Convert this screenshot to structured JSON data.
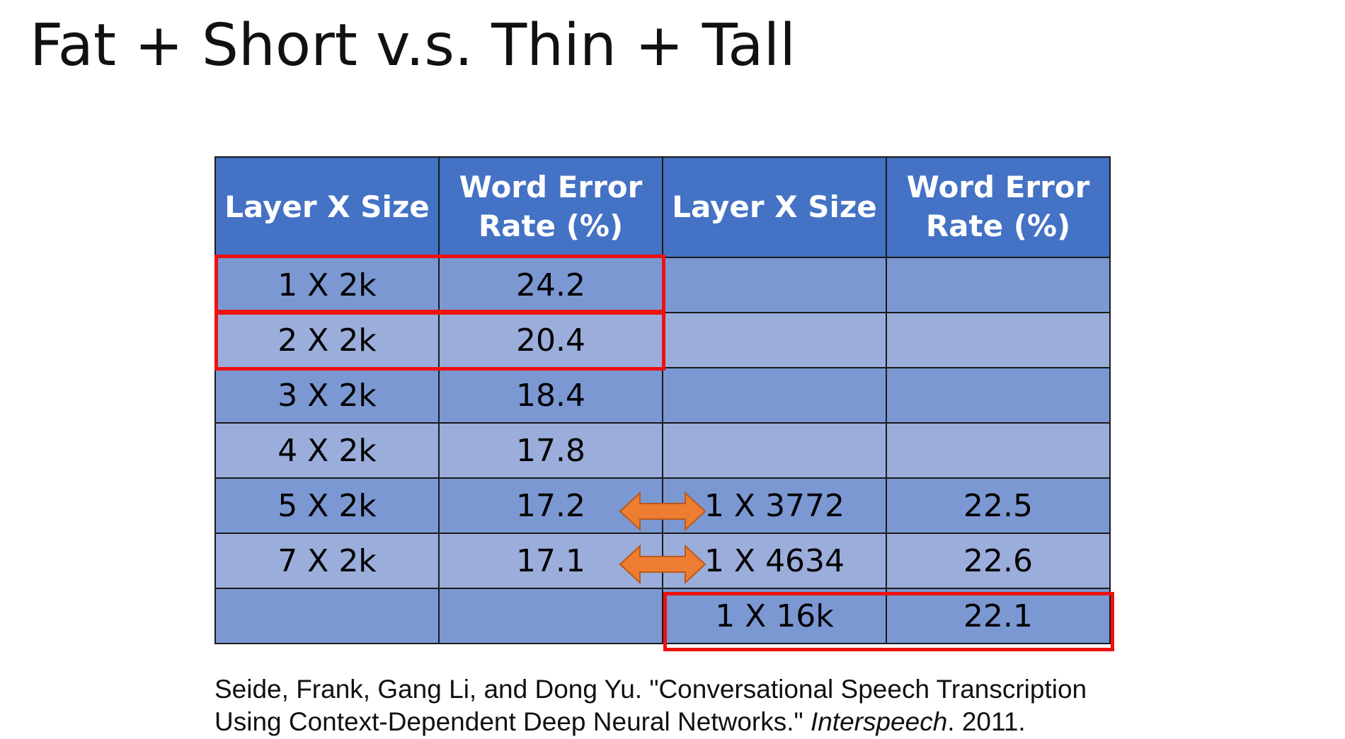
{
  "title": "Fat + Short v.s. Thin + Tall",
  "table": {
    "headers": [
      "Layer X Size",
      "Word Error Rate (%)",
      "Layer X Size",
      "Word Error Rate (%)"
    ],
    "rows": [
      [
        "1 X 2k",
        "24.2",
        "",
        ""
      ],
      [
        "2 X 2k",
        "20.4",
        "",
        ""
      ],
      [
        "3 X 2k",
        "18.4",
        "",
        ""
      ],
      [
        "4 X 2k",
        "17.8",
        "",
        ""
      ],
      [
        "5 X 2k",
        "17.2",
        "1 X 3772",
        "22.5"
      ],
      [
        "7 X 2k",
        "17.1",
        "1 X 4634",
        "22.6"
      ],
      [
        "",
        "",
        "1 X 16k",
        "22.1"
      ]
    ]
  },
  "colors": {
    "header": "#4472c4",
    "row_dark": "#7b98d2",
    "row_light": "#9badda",
    "highlight": "#ee1111",
    "arrow": "#ed7d31"
  },
  "icons": [
    "double-arrow-icon"
  ],
  "citation": {
    "line1": "Seide, Frank, Gang Li, and Dong Yu. \"Conversational Speech Transcription",
    "line2_before": "Using Context-Dependent Deep Neural Networks.\" ",
    "venue": "Interspeech",
    "line2_after": ". 2011."
  }
}
